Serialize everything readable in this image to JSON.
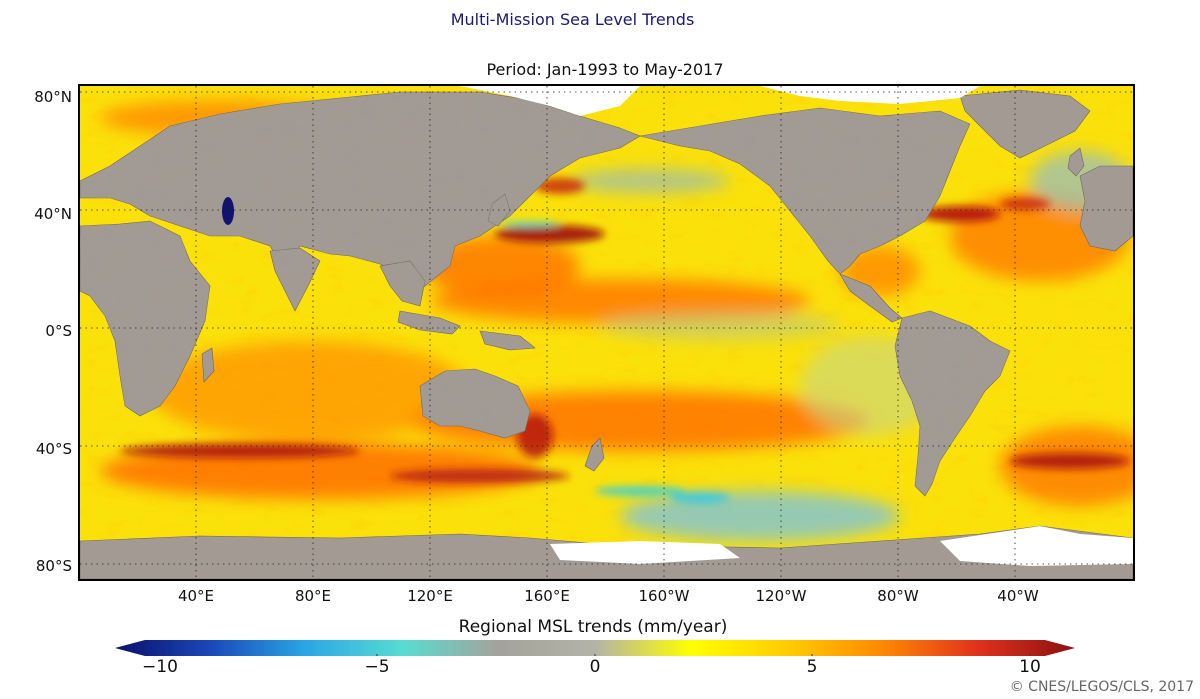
{
  "title": "Multi-Mission Sea Level Trends",
  "subtitle": "Period: Jan-1993 to May-2017",
  "map": {
    "projection": "equirectangular",
    "center_longitude": "180",
    "latitude_ticks": [
      "80°N",
      "40°N",
      "0°S",
      "40°S",
      "80°S"
    ],
    "longitude_ticks": [
      "40°E",
      "80°E",
      "120°E",
      "160°E",
      "160°W",
      "120°W",
      "80°W",
      "40°W"
    ],
    "grid": "dotted",
    "land_color": "#a39b93",
    "ice_color": "#ffffff"
  },
  "colorbar": {
    "label": "Regional MSL trends (mm/year)",
    "tick_labels": [
      "−10",
      "−5",
      "0",
      "5",
      "10"
    ],
    "range": [
      -10,
      10
    ],
    "colors": [
      "#0b0f6b",
      "#1b48b8",
      "#2aa7e6",
      "#58dcd2",
      "#a3a39b",
      "#b3b3a8",
      "#ffff00",
      "#ffcc00",
      "#ff8800",
      "#e0301e",
      "#8a1010"
    ]
  },
  "credit": "© CNES/LEGOS/CLS, 2017"
}
